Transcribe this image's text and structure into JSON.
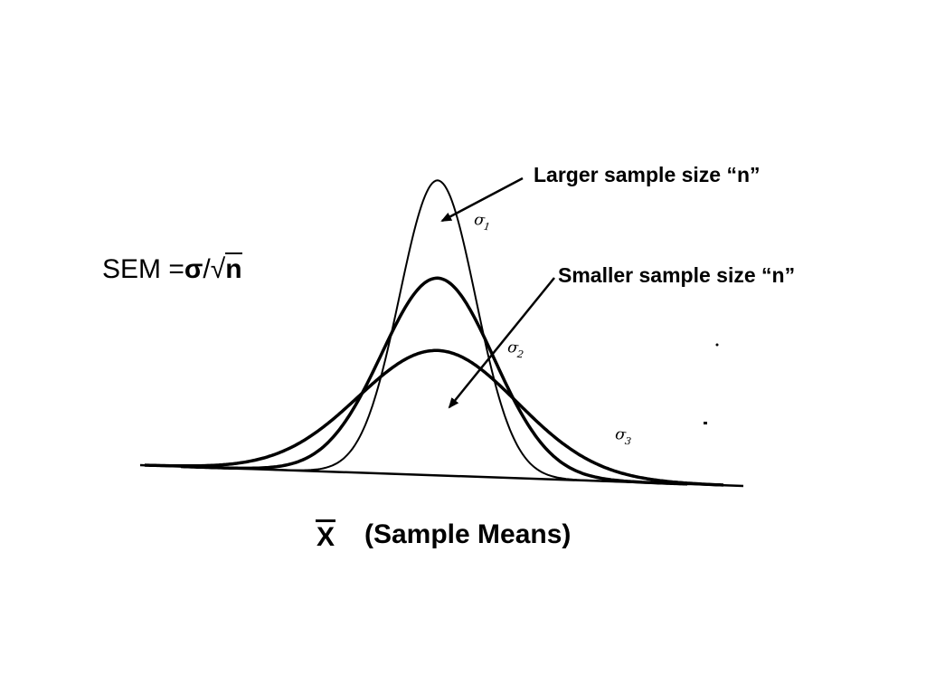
{
  "formula": {
    "prefix": "SEM =",
    "sigma": "σ",
    "slash": "/",
    "radical": "√",
    "radicand": "n"
  },
  "annotations": {
    "larger": "Larger sample size “n”",
    "smaller": "Smaller sample size “n”"
  },
  "axis": {
    "symbol": "X",
    "label": "(Sample Means)"
  },
  "curves": [
    {
      "label": "σ",
      "subscript": "1",
      "sample_size": "larger"
    },
    {
      "label": "σ",
      "subscript": "2",
      "sample_size": "medium"
    },
    {
      "label": "σ",
      "subscript": "3",
      "sample_size": "smaller"
    }
  ]
}
